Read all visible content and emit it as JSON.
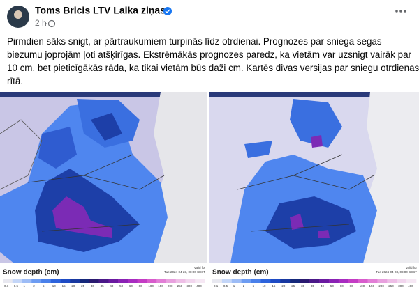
{
  "post": {
    "author": "Toms Bricis LTV Laika ziņas",
    "time": "2 h",
    "text_lines": [
      "Pirmdien sāks snigt, ar pārtraukumiem turpinās līdz otrdienai. Prognozes par sniega segas",
      "biezumu joprojām ļoti atšķirīgas. Ekstrēmākās prognozes paredz, ka vietām var uzsnigt vairāk par",
      "10 cm, bet pieticīgākās rāda, ka tikai vietām būs daži cm. Kartēs divas versijas par sniegu otrdienas",
      "rītā."
    ],
    "images": [
      {
        "legend_title": "Snow depth (cm)",
        "valid_label": "Valid for",
        "valid_time": "Tue 2024-04-23, 08:00 CEST"
      },
      {
        "legend_title": "Snow depth (cm)",
        "valid_label": "Valid for",
        "valid_time": "Tue 2024-04-23, 08:00 CEST"
      }
    ],
    "scale_labels": [
      "0.1",
      "0.5",
      "1",
      "2",
      "5",
      "10",
      "15",
      "20",
      "25",
      "30",
      "35",
      "40",
      "50",
      "60",
      "80",
      "100",
      "150",
      "200",
      "250",
      "300",
      "400"
    ]
  }
}
